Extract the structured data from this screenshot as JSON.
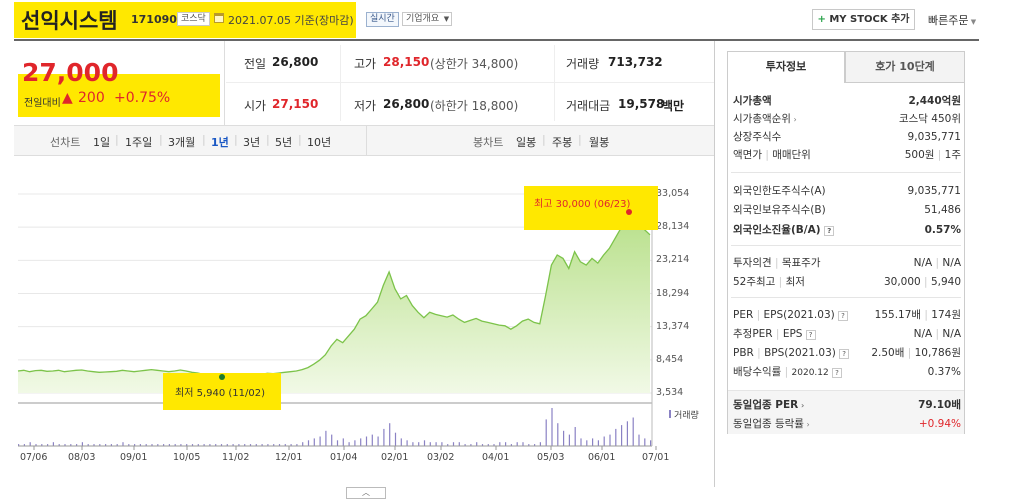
{
  "header": {
    "company_name": "선익시스템",
    "code": "171090",
    "market_tag": "코스닥",
    "date_text": "2021.07.05 기준(장마감)",
    "realtime_label": "실시간",
    "company_info_label": "기업개요",
    "my_stock_label": "MY STOCK 추가",
    "quick_order_label": "빠른주문"
  },
  "price": {
    "current": "27,000",
    "change_label": "전일대비",
    "change_value": "200",
    "change_pct": "+0.75%"
  },
  "quote": {
    "prev_close_label": "전일",
    "prev_close": "26,800",
    "high_label": "고가",
    "high": "28,150",
    "upper_limit": "(상한가 34,800)",
    "volume_label": "거래량",
    "volume": "713,732",
    "open_label": "시가",
    "open": "27,150",
    "low_label": "저가",
    "low": "26,800",
    "lower_limit": "(하한가 18,800)",
    "amount_label": "거래대금",
    "amount": "19,578",
    "amount_unit": "백만"
  },
  "period_tabs": {
    "line_label": "선차트",
    "items": [
      "1일",
      "1주일",
      "3개월",
      "1년",
      "3년",
      "5년",
      "10년"
    ],
    "selected": "1년",
    "candle_label": "봉차트",
    "candle_items": [
      "일봉",
      "주봉",
      "월봉"
    ]
  },
  "chart_data": {
    "type": "area",
    "y_ticks": [
      "33,054",
      "28,134",
      "23,214",
      "18,294",
      "13,374",
      "8,454",
      "3,534"
    ],
    "ylim": [
      3534,
      33054
    ],
    "x_ticks": [
      "07/06",
      "08/03",
      "09/01",
      "10/05",
      "11/02",
      "12/01",
      "01/04",
      "02/01",
      "03/02",
      "04/01",
      "05/03",
      "06/01",
      "07/01"
    ],
    "series": [
      {
        "values": [
          6800,
          6900,
          6700,
          6850,
          6900,
          6750,
          6800,
          6900,
          6700,
          6800,
          6900,
          6950,
          6800,
          6700,
          6600,
          6650,
          6700,
          6750,
          6900,
          6800,
          6700,
          6800,
          6900,
          7000,
          6900,
          6800,
          6700,
          6800,
          6950,
          6800,
          6600,
          6500,
          6300,
          6200,
          6100,
          6000,
          5940,
          6050,
          6200,
          6300,
          6200,
          6100,
          6300,
          6450,
          6400,
          6500,
          6600,
          6700,
          6800,
          7000,
          7300,
          7800,
          8400,
          9200,
          10500,
          11500,
          11000,
          12000,
          13000,
          14500,
          15000,
          16000,
          17000,
          19500,
          21500,
          19000,
          17500,
          18000,
          16500,
          15500,
          14700,
          15500,
          15200,
          15000,
          14800,
          15100,
          14500,
          14000,
          14300,
          14600,
          14200,
          14000,
          13800,
          13600,
          13500,
          13000,
          13500,
          14200,
          14500,
          14000,
          13800,
          18000,
          22500,
          24000,
          23500,
          22000,
          24500,
          23000,
          22500,
          23500,
          22800,
          24000,
          25000,
          26500,
          28000,
          29500,
          30000,
          28500,
          27800,
          27000
        ]
      }
    ],
    "max_annotation": "최고 30,000 (06/23)",
    "min_annotation": "최저 5,940 (11/02)",
    "volume_legend": "거래량",
    "volume": [
      1,
      1,
      2,
      1,
      1,
      1,
      2,
      1,
      1,
      1,
      1,
      2,
      1,
      1,
      1,
      1,
      1,
      1,
      2,
      1,
      1,
      1,
      1,
      1,
      1,
      1,
      1,
      1,
      1,
      1,
      1,
      1,
      1,
      1,
      1,
      1,
      1,
      1,
      1,
      1,
      1,
      1,
      1,
      1,
      1,
      1,
      1,
      1,
      1,
      2,
      3,
      4,
      5,
      8,
      6,
      3,
      4,
      2,
      3,
      4,
      5,
      6,
      5,
      9,
      12,
      7,
      4,
      3,
      2,
      2,
      3,
      2,
      2,
      2,
      1,
      2,
      2,
      1,
      1,
      2,
      1,
      1,
      1,
      2,
      2,
      1,
      2,
      2,
      1,
      1,
      2,
      14,
      20,
      12,
      8,
      6,
      10,
      4,
      3,
      4,
      3,
      5,
      6,
      9,
      11,
      13,
      15,
      6,
      4,
      3
    ]
  },
  "invest_tabs": [
    "투자정보",
    "호가 10단계"
  ],
  "invest": {
    "market_cap_label": "시가총액",
    "market_cap": "2,440억원",
    "rank_label": "시가총액순위",
    "rank": "코스닥 450위",
    "shares_label": "상장주식수",
    "shares": "9,035,771",
    "face_label": "액면가",
    "trade_unit_label": "매매단위",
    "face_unit": "500원",
    "trade_unit": "1주",
    "foreign_limit_label": "외국인한도주식수(A)",
    "foreign_limit": "9,035,771",
    "foreign_hold_label": "외국인보유주식수(B)",
    "foreign_hold": "51,486",
    "foreign_ratio_label": "외국인소진율(B/A)",
    "foreign_ratio": "0.57%",
    "opinion_label": "투자의견",
    "target_label": "목표주가",
    "opinion": "N/A",
    "target": "N/A",
    "high52_label": "52주최고",
    "low52_label": "최저",
    "high52": "30,000",
    "low52": "5,940",
    "per_label": "PER",
    "eps_label": "EPS(2021.03)",
    "per": "155.17배",
    "eps": "174원",
    "est_per_label": "추정PER",
    "est_eps_label": "EPS",
    "est_per": "N/A",
    "est_eps": "N/A",
    "pbr_label": "PBR",
    "bps_label": "BPS(2021.03)",
    "pbr": "2.50배",
    "bps": "10,786원",
    "div_label": "배당수익률",
    "div_date": "2020.12",
    "div": "0.37%",
    "sector_per_label": "동일업종 PER",
    "sector_per": "79.10배",
    "sector_chg_label": "동일업종 등락률",
    "sector_chg": "+0.94%"
  }
}
